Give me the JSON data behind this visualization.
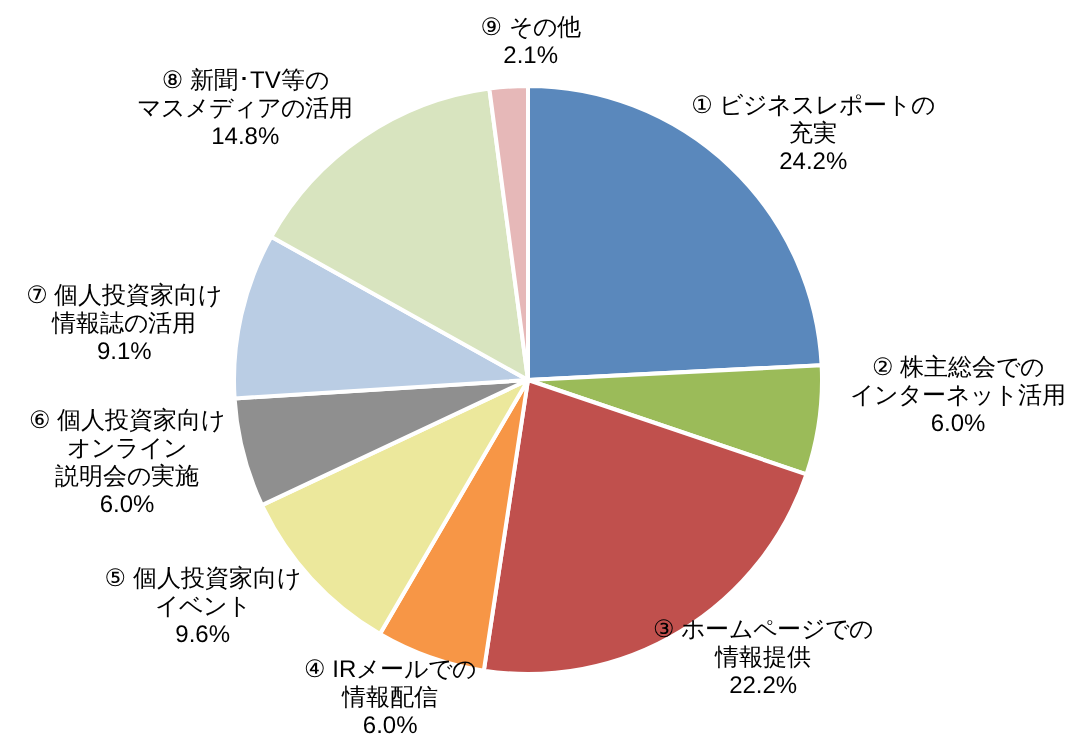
{
  "chart_data": {
    "type": "pie",
    "categories": [
      "① ビジネスレポートの充実",
      "② 株主総会でのインターネット活用",
      "③ ホームページでの情報提供",
      "④ IRメールでの情報配信",
      "⑤ 個人投資家向けイベント",
      "⑥ 個人投資家向けオンライン説明会の実施",
      "⑦ 個人投資家向け情報誌の活用",
      "⑧ 新聞･TV等のマスメディアの活用",
      "⑨ その他"
    ],
    "values": [
      24.2,
      6.0,
      22.2,
      6.0,
      9.6,
      6.0,
      9.1,
      14.8,
      2.1
    ],
    "value_labels": [
      "24.2%",
      "6.0%",
      "22.2%",
      "6.0%",
      "9.6%",
      "6.0%",
      "9.1%",
      "14.8%",
      "2.1%"
    ],
    "colors": [
      "#5a88bc",
      "#9bbb59",
      "#c0504d",
      "#f79646",
      "#ece89c",
      "#8f8f8f",
      "#bacde4",
      "#d8e4bf",
      "#e6b8b8"
    ]
  }
}
